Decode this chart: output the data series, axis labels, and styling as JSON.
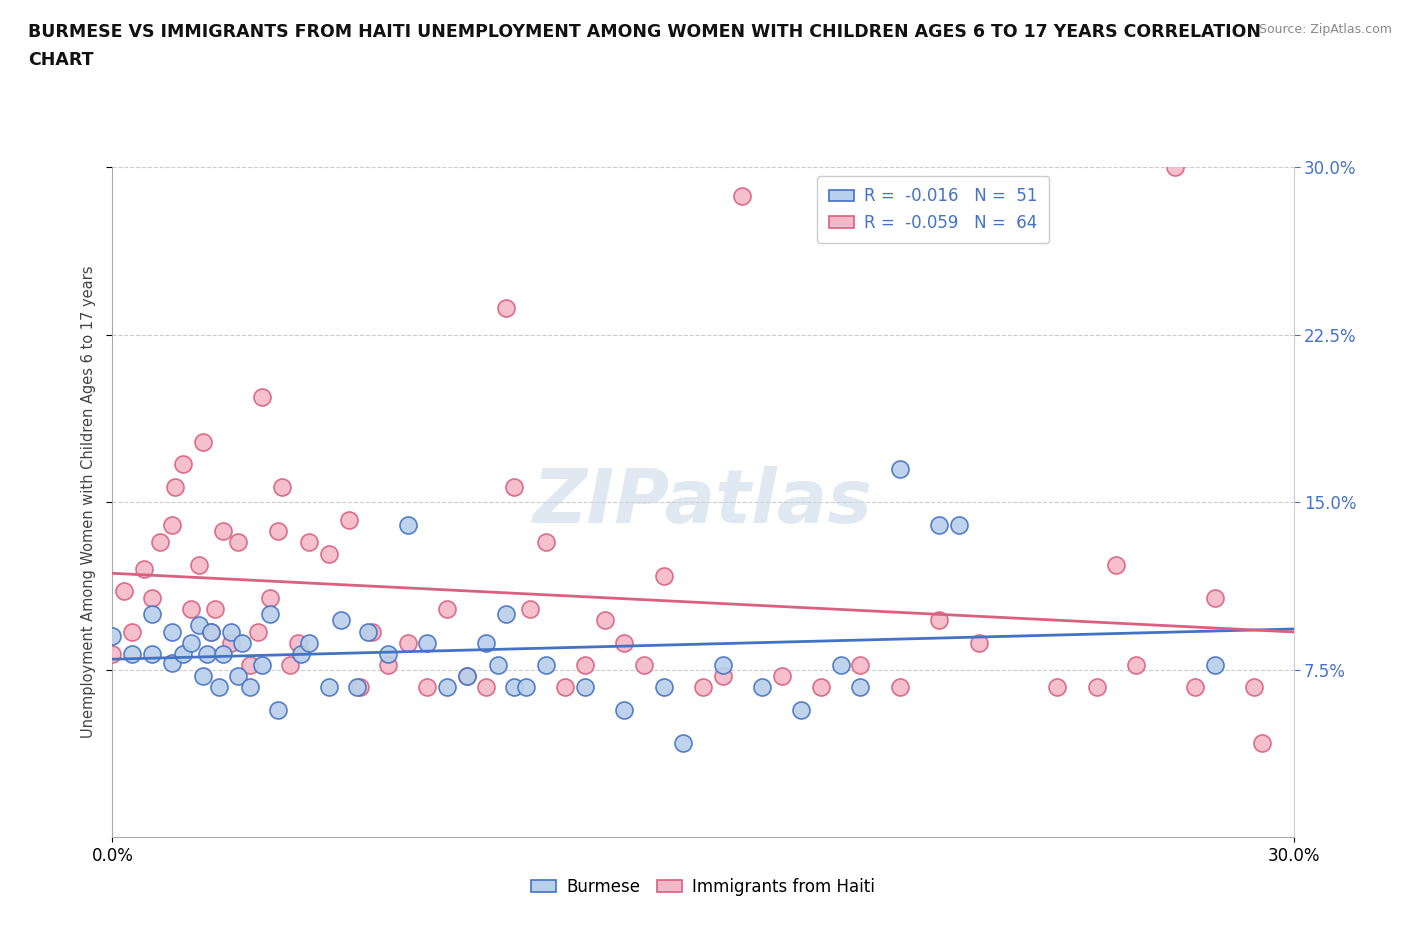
{
  "title_line1": "BURMESE VS IMMIGRANTS FROM HAITI UNEMPLOYMENT AMONG WOMEN WITH CHILDREN AGES 6 TO 17 YEARS CORRELATION",
  "title_line2": "CHART",
  "source": "Source: ZipAtlas.com",
  "ylabel": "Unemployment Among Women with Children Ages 6 to 17 years",
  "xlim": [
    0.0,
    0.3
  ],
  "ylim": [
    0.0,
    0.3
  ],
  "yticks": [
    0.075,
    0.15,
    0.225,
    0.3
  ],
  "ytick_labels": [
    "7.5%",
    "15.0%",
    "22.5%",
    "30.0%"
  ],
  "xtick_pos": [
    0.0,
    0.3
  ],
  "xtick_labels": [
    "0.0%",
    "30.0%"
  ],
  "burmese_color_face": "#b8d0ea",
  "burmese_color_edge": "#4472c4",
  "haiti_color_face": "#f5b8c8",
  "haiti_color_edge": "#d96080",
  "burmese_R": -0.016,
  "burmese_N": 51,
  "haiti_R": -0.059,
  "haiti_N": 64,
  "watermark": "ZIPatlas",
  "legend_R_color": "#4472c4",
  "burmese_x": [
    0.0,
    0.005,
    0.01,
    0.01,
    0.015,
    0.015,
    0.018,
    0.02,
    0.022,
    0.023,
    0.024,
    0.025,
    0.027,
    0.028,
    0.03,
    0.032,
    0.033,
    0.035,
    0.038,
    0.04,
    0.042,
    0.048,
    0.05,
    0.055,
    0.058,
    0.062,
    0.065,
    0.07,
    0.075,
    0.08,
    0.085,
    0.09,
    0.095,
    0.098,
    0.1,
    0.102,
    0.105,
    0.11,
    0.12,
    0.13,
    0.14,
    0.145,
    0.155,
    0.165,
    0.175,
    0.185,
    0.19,
    0.2,
    0.21,
    0.215,
    0.28
  ],
  "burmese_y": [
    0.09,
    0.082,
    0.082,
    0.1,
    0.078,
    0.092,
    0.082,
    0.087,
    0.095,
    0.072,
    0.082,
    0.092,
    0.067,
    0.082,
    0.092,
    0.072,
    0.087,
    0.067,
    0.077,
    0.1,
    0.057,
    0.082,
    0.087,
    0.067,
    0.097,
    0.067,
    0.092,
    0.082,
    0.14,
    0.087,
    0.067,
    0.072,
    0.087,
    0.077,
    0.1,
    0.067,
    0.067,
    0.077,
    0.067,
    0.057,
    0.067,
    0.042,
    0.077,
    0.067,
    0.057,
    0.077,
    0.067,
    0.165,
    0.14,
    0.14,
    0.077
  ],
  "haiti_x": [
    0.0,
    0.003,
    0.005,
    0.008,
    0.01,
    0.012,
    0.015,
    0.016,
    0.018,
    0.02,
    0.022,
    0.023,
    0.025,
    0.026,
    0.028,
    0.03,
    0.032,
    0.035,
    0.037,
    0.038,
    0.04,
    0.042,
    0.043,
    0.045,
    0.047,
    0.05,
    0.055,
    0.06,
    0.063,
    0.066,
    0.07,
    0.075,
    0.08,
    0.085,
    0.09,
    0.095,
    0.1,
    0.102,
    0.106,
    0.11,
    0.115,
    0.12,
    0.125,
    0.13,
    0.135,
    0.14,
    0.15,
    0.155,
    0.16,
    0.17,
    0.18,
    0.19,
    0.2,
    0.21,
    0.22,
    0.24,
    0.25,
    0.255,
    0.26,
    0.27,
    0.275,
    0.28,
    0.29,
    0.292
  ],
  "haiti_y": [
    0.082,
    0.11,
    0.092,
    0.12,
    0.107,
    0.132,
    0.14,
    0.157,
    0.167,
    0.102,
    0.122,
    0.177,
    0.092,
    0.102,
    0.137,
    0.087,
    0.132,
    0.077,
    0.092,
    0.197,
    0.107,
    0.137,
    0.157,
    0.077,
    0.087,
    0.132,
    0.127,
    0.142,
    0.067,
    0.092,
    0.077,
    0.087,
    0.067,
    0.102,
    0.072,
    0.067,
    0.237,
    0.157,
    0.102,
    0.132,
    0.067,
    0.077,
    0.097,
    0.087,
    0.077,
    0.117,
    0.067,
    0.072,
    0.287,
    0.072,
    0.067,
    0.077,
    0.067,
    0.097,
    0.087,
    0.067,
    0.067,
    0.122,
    0.077,
    0.3,
    0.067,
    0.107,
    0.067,
    0.042
  ]
}
